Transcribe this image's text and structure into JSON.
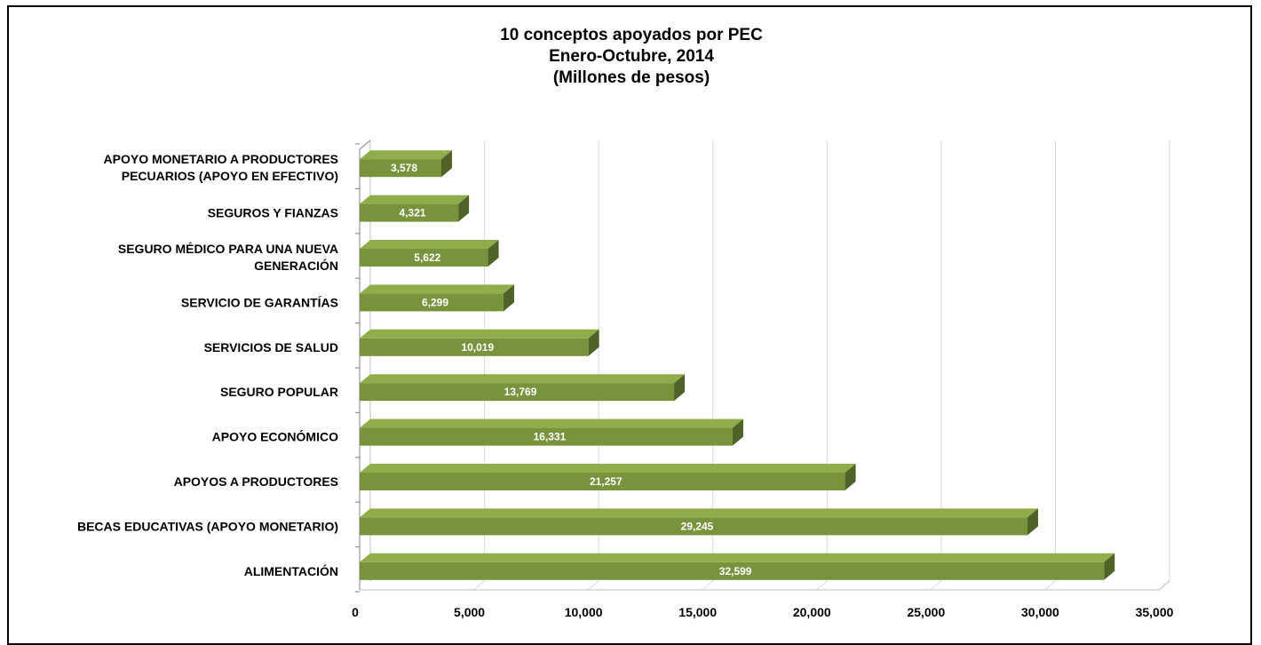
{
  "chart_data": {
    "type": "bar",
    "orientation": "horizontal",
    "title": "10 conceptos apoyados por PEC",
    "subtitle_lines": [
      "Enero-Octubre, 2014",
      "(Millones de pesos)"
    ],
    "categories": [
      [
        "APOYO MONETARIO A PRODUCTORES",
        "PECUARIOS (APOYO EN EFECTIVO)"
      ],
      [
        "SEGUROS Y FIANZAS"
      ],
      [
        "SEGURO MÉDICO PARA UNA NUEVA",
        "GENERACIÓN"
      ],
      [
        "SERVICIO DE GARANTÍAS"
      ],
      [
        "SERVICIOS DE SALUD"
      ],
      [
        "SEGURO POPULAR"
      ],
      [
        "APOYO ECONÓMICO"
      ],
      [
        "APOYOS A PRODUCTORES"
      ],
      [
        "BECAS EDUCATIVAS (APOYO MONETARIO)"
      ],
      [
        "ALIMENTACIÓN"
      ]
    ],
    "values": [
      3578,
      4321,
      5622,
      6299,
      10019,
      13769,
      16331,
      21257,
      29245,
      32599
    ],
    "value_labels": [
      "3,578",
      "4,321",
      "5,622",
      "6,299",
      "10,019",
      "13,769",
      "16,331",
      "21,257",
      "29,245",
      "32,599"
    ],
    "xlim": [
      0,
      35000
    ],
    "x_ticks": [
      0,
      5000,
      10000,
      15000,
      20000,
      25000,
      30000,
      35000
    ],
    "x_tick_labels": [
      "0",
      "5,000",
      "10,000",
      "15,000",
      "20,000",
      "25,000",
      "30,000",
      "35,000"
    ],
    "gridlines": true,
    "legend": "none",
    "colors": {
      "bar_front": "#77933c",
      "bar_top": "#8fad4a",
      "bar_side": "#4f6228",
      "grid": "#d9d9d9"
    }
  }
}
